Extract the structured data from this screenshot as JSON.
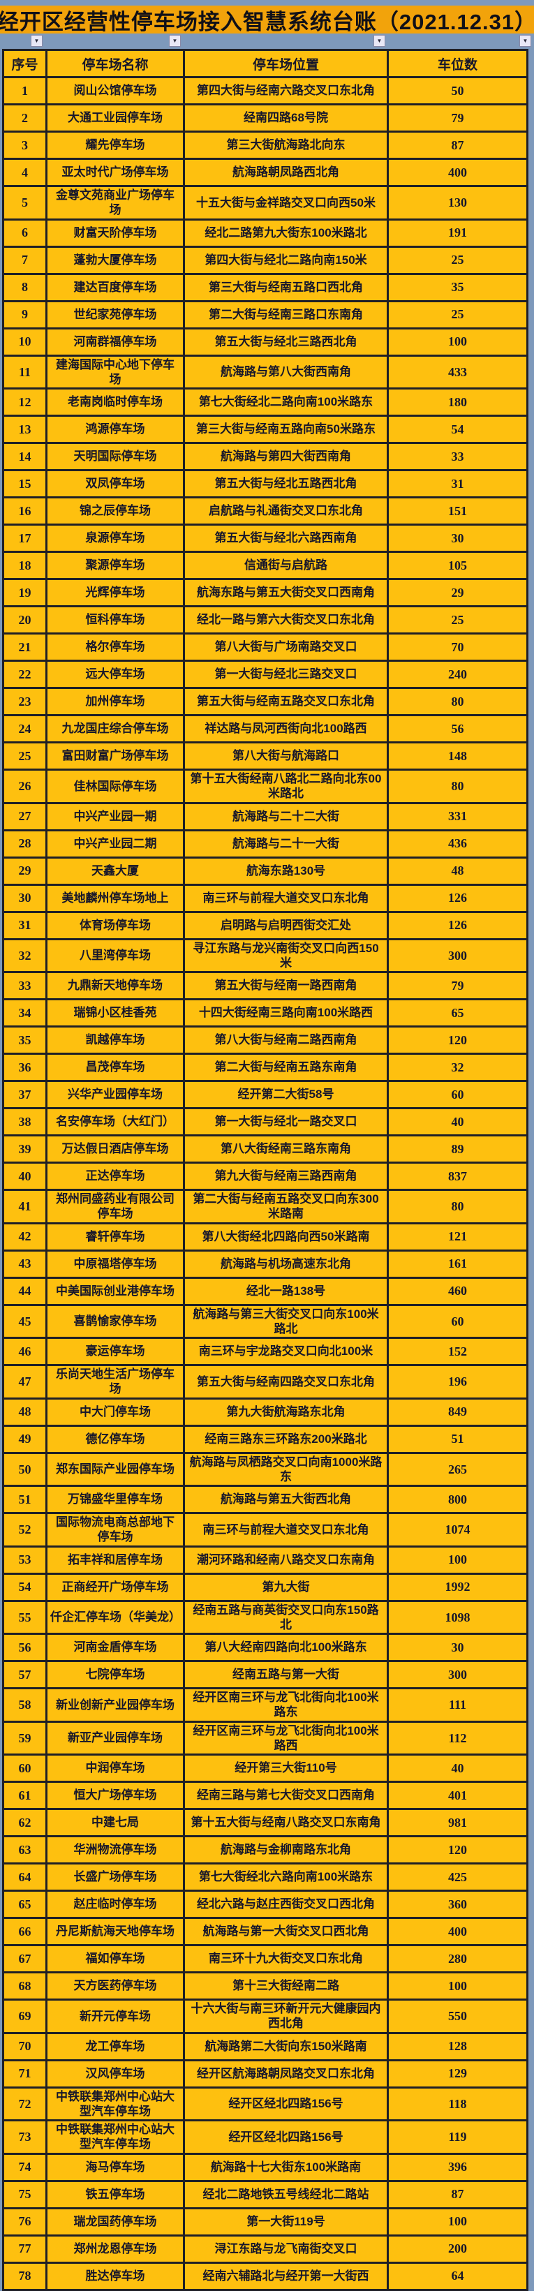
{
  "title": "经开区经营性停车场接入智慧系统台账（2021.12.31）",
  "columns": [
    "序号",
    "停车场名称",
    "停车场位置",
    "车位数"
  ],
  "filter_icon": "▼",
  "colors": {
    "page_bg": "#7E99BB",
    "title_bg": "#F2A30B",
    "cell_bg": "#FEC00F",
    "border": "#1F1F26",
    "text": "#16162B"
  },
  "rows": [
    [
      "1",
      "阅山公馆停车场",
      "第四大街与经南六路交叉口东北角",
      "50"
    ],
    [
      "2",
      "大通工业园停车场",
      "经南四路68号院",
      "79"
    ],
    [
      "3",
      "耀先停车场",
      "第三大街航海路北向东",
      "87"
    ],
    [
      "4",
      "亚太时代广场停车场",
      "航海路朝凤路西北角",
      "400"
    ],
    [
      "5",
      "金尊文苑商业广场停车场",
      "十五大街与金祥路交叉口向西50米",
      "130"
    ],
    [
      "6",
      "财富天阶停车场",
      "经北二路第九大街东100米路北",
      "191"
    ],
    [
      "7",
      "蓬勃大厦停车场",
      "第四大街与经北二路向南150米",
      "25"
    ],
    [
      "8",
      "建达百度停车场",
      "第三大街与经南五路口西北角",
      "35"
    ],
    [
      "9",
      "世纪家苑停车场",
      "第二大街与经南三路口东南角",
      "25"
    ],
    [
      "10",
      "河南群福停车场",
      "第五大街与经北三路西北角",
      "100"
    ],
    [
      "11",
      "建海国际中心地下停车场",
      "航海路与第八大街西南角",
      "433"
    ],
    [
      "12",
      "老南岗临时停车场",
      "第七大街经北二路向南100米路东",
      "180"
    ],
    [
      "13",
      "鸿源停车场",
      "第三大街与经南五路向南50米路东",
      "54"
    ],
    [
      "14",
      "天明国际停车场",
      "航海路与第四大街西南角",
      "33"
    ],
    [
      "15",
      "双凤停车场",
      "第五大街与经北五路西北角",
      "31"
    ],
    [
      "16",
      "锦之辰停车场",
      "启航路与礼通街交叉口东北角",
      "151"
    ],
    [
      "17",
      "泉源停车场",
      "第五大街与经北六路西南角",
      "30"
    ],
    [
      "18",
      "聚源停车场",
      "信通街与启航路",
      "105"
    ],
    [
      "19",
      "光辉停车场",
      "航海东路与第五大街交叉口西南角",
      "29"
    ],
    [
      "20",
      "恒科停车场",
      "经北一路与第六大街交叉口东北角",
      "25"
    ],
    [
      "21",
      "格尔停车场",
      "第八大街与广场南路交叉口",
      "70"
    ],
    [
      "22",
      "远大停车场",
      "第一大街与经北三路交叉口",
      "240"
    ],
    [
      "23",
      "加州停车场",
      "第五大街与经南五路交叉口东北角",
      "80"
    ],
    [
      "24",
      "九龙国庄综合停车场",
      "祥达路与凤河西街向北100路西",
      "56"
    ],
    [
      "25",
      "富田财富广场停车场",
      "第八大街与航海路口",
      "148"
    ],
    [
      "26",
      "佳林国际停车场",
      "第十五大街经南八路北二路向北东00米路北",
      "80"
    ],
    [
      "27",
      "中兴产业园一期",
      "航海路与二十二大街",
      "331"
    ],
    [
      "28",
      "中兴产业园二期",
      "航海路与二十一大街",
      "436"
    ],
    [
      "29",
      "天鑫大厦",
      "航海东路130号",
      "48"
    ],
    [
      "30",
      "美地麟州停车场地上",
      "南三环与前程大道交叉口东北角",
      "126"
    ],
    [
      "31",
      "体育场停车场",
      "启明路与启明西街交汇处",
      "126"
    ],
    [
      "32",
      "八里湾停车场",
      "寻江东路与龙兴南街交叉口向西150米",
      "300"
    ],
    [
      "33",
      "九鼎新天地停车场",
      "第五大街与经南一路西南角",
      "79"
    ],
    [
      "34",
      "瑞锦小区桂香苑",
      "十四大街经南三路向南100米路西",
      "65"
    ],
    [
      "35",
      "凯越停车场",
      "第八大街与经南二路西南角",
      "120"
    ],
    [
      "36",
      "昌茂停车场",
      "第二大街与经南五路东南角",
      "32"
    ],
    [
      "37",
      "兴华产业园停车场",
      "经开第二大街58号",
      "60"
    ],
    [
      "38",
      "名安停车场（大红门）",
      "第一大街与经北一路交叉口",
      "40"
    ],
    [
      "39",
      "万达假日酒店停车场",
      "第八大街经南三路东南角",
      "89"
    ],
    [
      "40",
      "正达停车场",
      "第九大街与经南三路西南角",
      "837"
    ],
    [
      "41",
      "郑州同盛药业有限公司停车场",
      "第二大街与经南五路交叉口向东300米路南",
      "80"
    ],
    [
      "42",
      "睿轩停车场",
      "第八大街经北四路向西50米路南",
      "121"
    ],
    [
      "43",
      "中原福塔停车场",
      "航海路与机场高速东北角",
      "161"
    ],
    [
      "44",
      "中美国际创业港停车场",
      "经北一路138号",
      "460"
    ],
    [
      "45",
      "喜鹊愉家停车场",
      "航海路与第三大街交叉口向东100米路北",
      "60"
    ],
    [
      "46",
      "豪运停车场",
      "南三环与宇龙路交叉口向北100米",
      "152"
    ],
    [
      "47",
      "乐尚天地生活广场停车场",
      "第五大街与经南四路交叉口东北角",
      "196"
    ],
    [
      "48",
      "中大门停车场",
      "第九大街航海路东北角",
      "849"
    ],
    [
      "49",
      "德亿停车场",
      "经南三路东三环路东200米路北",
      "51"
    ],
    [
      "50",
      "郑东国际产业园停车场",
      "航海路与凤栖路交叉口向南1000米路东",
      "265"
    ],
    [
      "51",
      "万锦盛华里停车场",
      "航海路与第五大街西北角",
      "800"
    ],
    [
      "52",
      "国际物流电商总部地下停车场",
      "南三环与前程大道交叉口东北角",
      "1074"
    ],
    [
      "53",
      "拓丰祥和居停车场",
      "潮河环路和经南八路交叉口东南角",
      "100"
    ],
    [
      "54",
      "正商经开广场停车场",
      "第九大街",
      "1992"
    ],
    [
      "55",
      "仟企汇停车场（华美龙）",
      "经南五路与商英街交叉口向东150路北",
      "1098"
    ],
    [
      "56",
      "河南金盾停车场",
      "第八大经南四路向北100米路东",
      "30"
    ],
    [
      "57",
      "七院停车场",
      "经南五路与第一大街",
      "300"
    ],
    [
      "58",
      "新业创新产业园停车场",
      "经开区南三环与龙飞北街向北100米路东",
      "111"
    ],
    [
      "59",
      "新亚产业园停车场",
      "经开区南三环与龙飞北街向北100米路西",
      "112"
    ],
    [
      "60",
      "中润停车场",
      "经开第三大街110号",
      "40"
    ],
    [
      "61",
      "恒大广场停车场",
      "经南三路与第七大街交叉口西南角",
      "401"
    ],
    [
      "62",
      "中建七局",
      "第十五大街与经南八路交叉口东南角",
      "981"
    ],
    [
      "63",
      "华洲物流停车场",
      "航海路与金柳南路东北角",
      "120"
    ],
    [
      "64",
      "长盛广场停车场",
      "第七大街经北六路向南100米路东",
      "425"
    ],
    [
      "65",
      "赵庄临时停车场",
      "经北六路与赵庄西街交叉口西北角",
      "360"
    ],
    [
      "66",
      "丹尼斯航海天地停车场",
      "航海路与第一大街交叉口西北角",
      "400"
    ],
    [
      "67",
      "福如停车场",
      "南三环十九大街交叉口东北角",
      "280"
    ],
    [
      "68",
      "天方医药停车场",
      "第十三大街经南二路",
      "100"
    ],
    [
      "69",
      "新开元停车场",
      "十六大街与南三环新开元大健康园内西北角",
      "550"
    ],
    [
      "70",
      "龙工停车场",
      "航海路第二大街向东150米路南",
      "128"
    ],
    [
      "71",
      "汉风停车场",
      "经开区航海路朝凤路交叉口东北角",
      "129"
    ],
    [
      "72",
      "中铁联集郑州中心站大型汽车停车场",
      "经开区经北四路156号",
      "118"
    ],
    [
      "73",
      "中铁联集郑州中心站大型汽车停车场",
      "经开区经北四路156号",
      "119"
    ],
    [
      "74",
      "海马停车场",
      "航海路十七大街东100米路南",
      "396"
    ],
    [
      "75",
      "铁五停车场",
      "经北二路地铁五号线经北二路站",
      "87"
    ],
    [
      "76",
      "瑞龙国药停车场",
      "第一大街119号",
      "100"
    ],
    [
      "77",
      "郑州龙恩停车场",
      "浔江东路与龙飞南街交叉口",
      "200"
    ],
    [
      "78",
      "胜达停车场",
      "经南六辅路北与经开第一大街西",
      "64"
    ]
  ]
}
